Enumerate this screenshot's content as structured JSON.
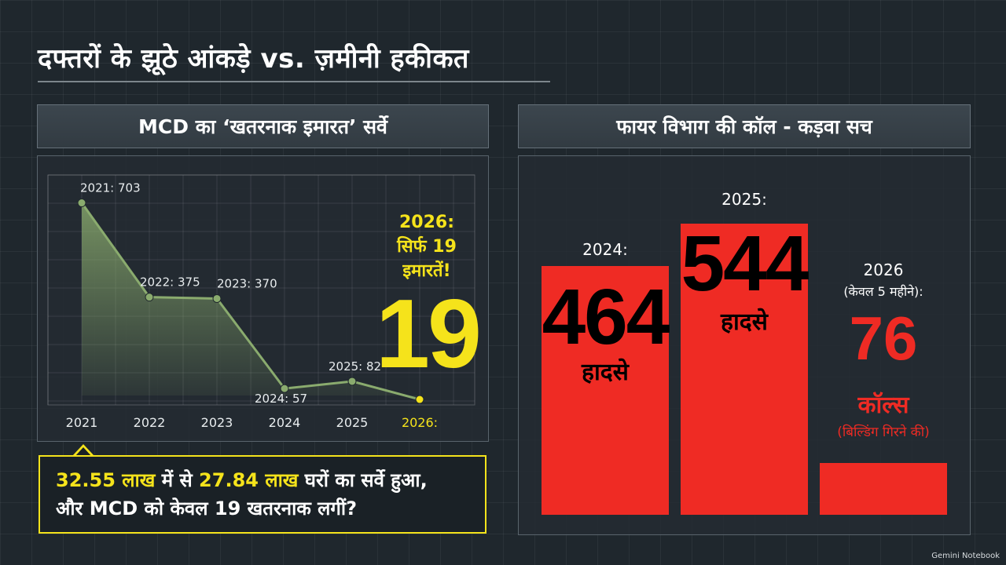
{
  "page_title": "दफ्तरों के झूठे आंकड़े vs. ज़मीनी हकीकत",
  "left_panel": {
    "title": "MCD का ‘खतरनाक इमारत’ सर्वे",
    "highlight": {
      "line1": "2026:",
      "line2": "सिर्फ 19",
      "line3": "इमारतें!",
      "big": "19"
    },
    "callout": {
      "part1": "32.55 लाख",
      "part2": " में से ",
      "part3": "27.84 लाख",
      "part4": " घरों का सर्वे हुआ,",
      "line2": "और MCD को केवल 19 खतरनाक लगीं?"
    }
  },
  "right_panel": {
    "title": "फायर विभाग की कॉल - कड़वा सच",
    "bars": [
      {
        "label": "2024:",
        "value": "464",
        "unit": "हादसे"
      },
      {
        "label": "2025:",
        "value": "544",
        "unit": "हादसे"
      },
      {
        "label_line1": "2026",
        "label_line2": "(केवल 5 महीने):",
        "value": "76",
        "unit": "कॉल्स",
        "sub": "(बिल्डिंग गिरने की)"
      }
    ]
  },
  "footer": {
    "brand": "Gemini Notebook"
  },
  "colors": {
    "accent_yellow": "#f5e31b",
    "bar_red": "#ef2b24",
    "line_green": "#8aab6e",
    "background": "#1f272d"
  },
  "chart_data": [
    {
      "type": "area",
      "title": "MCD का ‘खतरनाक इमारत’ सर्वे",
      "categories": [
        "2021",
        "2022",
        "2023",
        "2024",
        "2025",
        "2026:"
      ],
      "values": [
        703,
        375,
        370,
        57,
        82,
        19
      ],
      "point_labels": [
        "2021: 703",
        "2022: 375",
        "2023: 370",
        "2024: 57",
        "2025: 82",
        ""
      ],
      "ylim": [
        0,
        800
      ],
      "grid": true
    },
    {
      "type": "bar",
      "title": "फायर विभाग की कॉल - कड़वा सच",
      "categories": [
        "2024",
        "2025",
        "2026 (केवल 5 महीने)"
      ],
      "values": [
        464,
        544,
        76
      ],
      "ylim": [
        0,
        560
      ]
    }
  ]
}
